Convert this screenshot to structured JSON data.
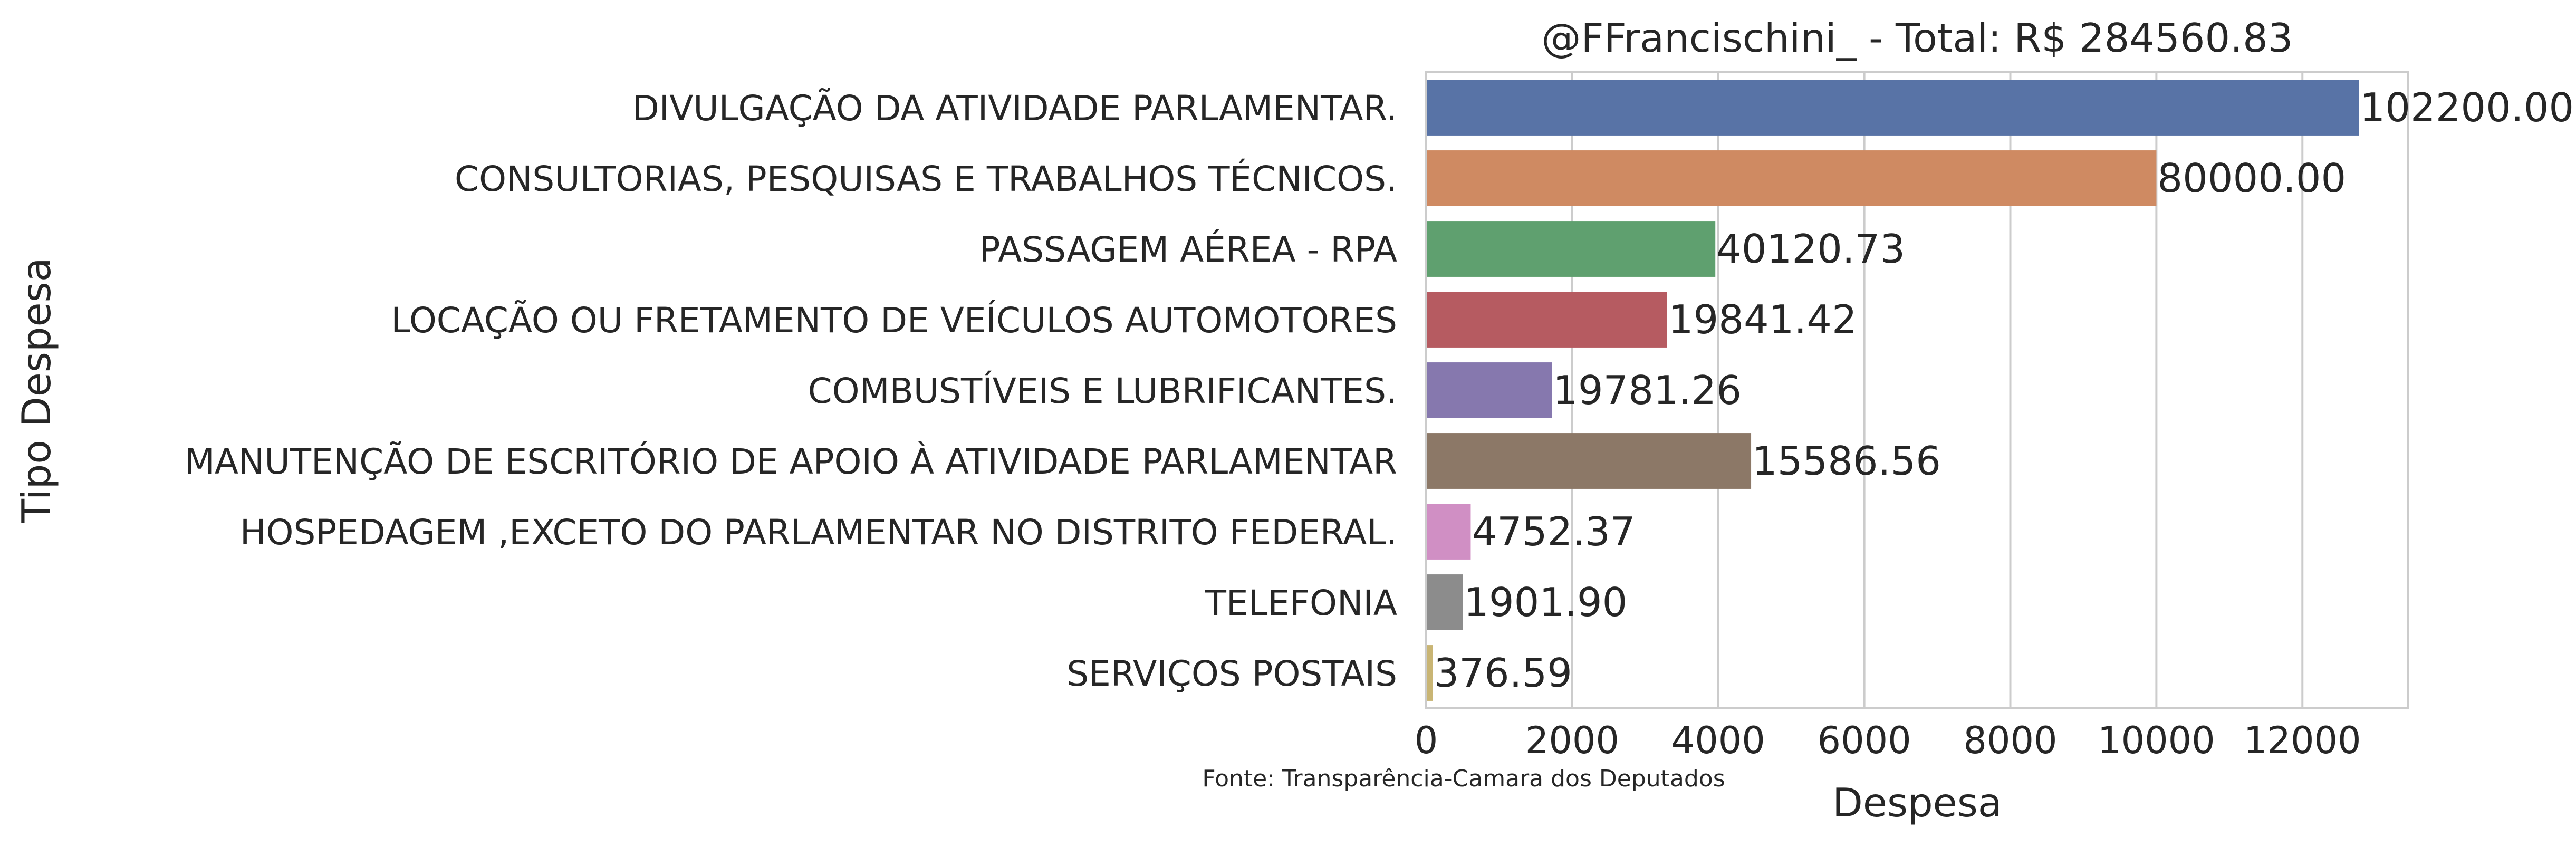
{
  "chart_data": {
    "type": "bar",
    "orientation": "horizontal",
    "title": "@FFrancischini_ - Total: R$ 284560.83",
    "xlabel": "Despesa",
    "ylabel": "Tipo Despesa",
    "source_note": "Fonte: Transparência-Camara dos Deputados",
    "xlim": [
      0,
      13450
    ],
    "xticks": [
      0,
      2000,
      4000,
      6000,
      8000,
      10000,
      12000
    ],
    "grid": true,
    "categories": [
      "DIVULGAÇÃO DA ATIVIDADE PARLAMENTAR.",
      "CONSULTORIAS, PESQUISAS E TRABALHOS TÉCNICOS.",
      "PASSAGEM AÉREA - RPA",
      "LOCAÇÃO OU FRETAMENTO DE VEÍCULOS AUTOMOTORES",
      "COMBUSTÍVEIS E LUBRIFICANTES.",
      "MANUTENÇÃO DE ESCRITÓRIO DE APOIO À ATIVIDADE PARLAMENTAR",
      "HOSPEDAGEM ,EXCETO DO PARLAMENTAR NO DISTRITO FEDERAL.",
      "TELEFONIA",
      "SERVIÇOS POSTAIS"
    ],
    "values": [
      12775,
      10000,
      3960,
      3300,
      1720,
      4450,
      610,
      500,
      90
    ],
    "data_labels": [
      "102200.00",
      "80000.00",
      "40120.73",
      "19841.42",
      "19781.26",
      "15586.56",
      "4752.37",
      "1901.90",
      "376.59"
    ],
    "colors": [
      "#5873a6",
      "#cf8a62",
      "#5fa06f",
      "#b65b61",
      "#8678ae",
      "#8c7867",
      "#d08fc4",
      "#8c8c8c",
      "#c9b574"
    ]
  }
}
